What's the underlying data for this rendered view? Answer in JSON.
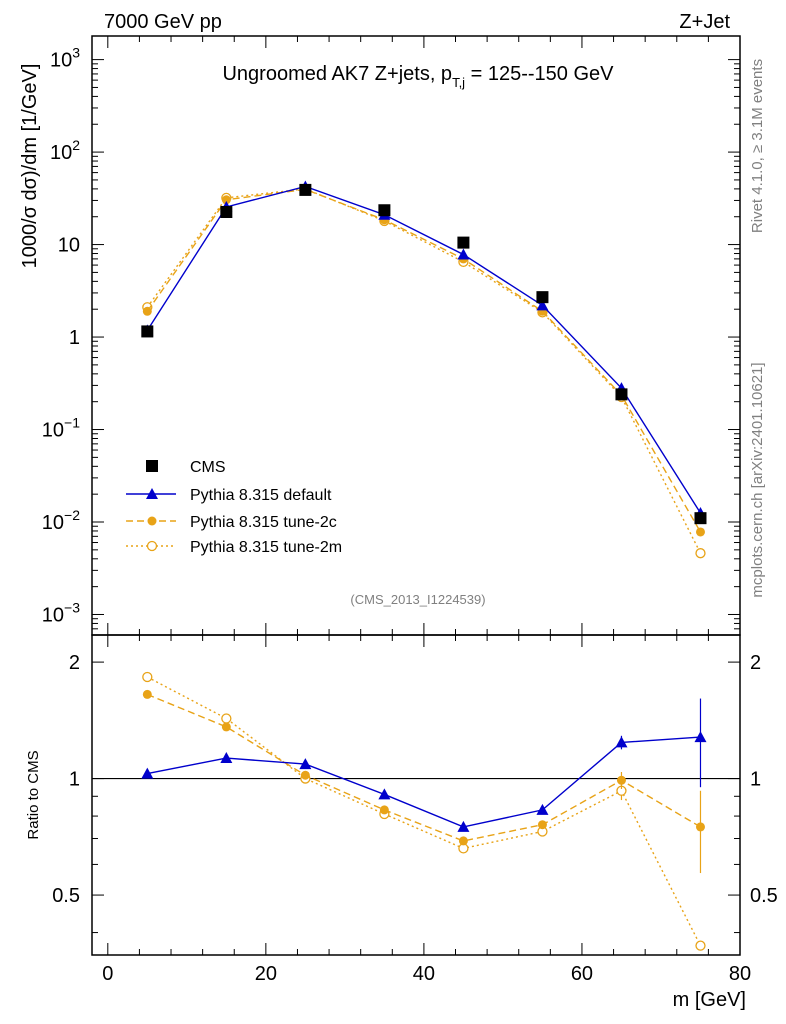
{
  "header": {
    "left": "7000 GeV pp",
    "right": "Z+Jet"
  },
  "side": {
    "rivet": "Rivet 4.1.0, ≥ 3.1M events",
    "mcplots": "mcplots.cern.ch [arXiv:2401.10621]"
  },
  "chart_data": {
    "type": "line",
    "title_main": "Ungroomed AK7 Z+jets, p",
    "title_sub": "T,j",
    "title_tail": " = 125--150 GeV",
    "analysis_tag": "(CMS_2013_I1224539)",
    "xlabel": "m [GeV]",
    "ylabel_top": "1000/σ  dσ)/dm [1/GeV]",
    "ylabel_bottom": "Ratio to CMS",
    "xlim": [
      -2,
      80
    ],
    "ylim_top": [
      0.0006,
      1800
    ],
    "ylim_bottom": [
      0.35,
      2.35
    ],
    "x_ticks": [
      {
        "value": 0,
        "label": "0"
      },
      {
        "value": 20,
        "label": "20"
      },
      {
        "value": 40,
        "label": "40"
      },
      {
        "value": 60,
        "label": "60"
      },
      {
        "value": 80,
        "label": "80"
      }
    ],
    "y_ticks_top": [
      {
        "value": 1000,
        "base": "10",
        "exp": "3"
      },
      {
        "value": 100,
        "base": "10",
        "exp": "2"
      },
      {
        "value": 10,
        "base": "10",
        "exp": ""
      },
      {
        "value": 1,
        "base": "1",
        "exp": ""
      },
      {
        "value": 0.1,
        "base": "10",
        "exp": "−1"
      },
      {
        "value": 0.01,
        "base": "10",
        "exp": "−2"
      },
      {
        "value": 0.001,
        "base": "10",
        "exp": "−3"
      }
    ],
    "y_ticks_bottom": [
      {
        "value": 2,
        "label": "2"
      },
      {
        "value": 1,
        "label": "1"
      },
      {
        "value": 0.5,
        "label": "0.5"
      }
    ],
    "x": [
      5,
      15,
      25,
      35,
      45,
      55,
      65,
      75
    ],
    "series": [
      {
        "name": "CMS",
        "color": "#000000",
        "marker": "square",
        "style": "none",
        "values": [
          1.15,
          22.5,
          39.0,
          23.5,
          10.5,
          2.7,
          0.24,
          0.011
        ],
        "ratio": [
          1,
          1,
          1,
          1,
          1,
          1,
          1,
          1
        ]
      },
      {
        "name": "Pythia 8.315 default",
        "color": "#0000cc",
        "marker": "triangle",
        "style": "solid",
        "values": [
          1.18,
          25.5,
          42.5,
          21.0,
          7.8,
          2.2,
          0.28,
          0.0125
        ],
        "ratio": [
          1.03,
          1.13,
          1.09,
          0.91,
          0.75,
          0.83,
          1.24,
          1.28
        ],
        "ratio_err": [
          0.02,
          0.0,
          0.0,
          0.0,
          0.0,
          0.0,
          0.05,
          0.33
        ]
      },
      {
        "name": "Pythia 8.315 tune-2c",
        "color": "#e8a317",
        "marker": "circle-filled",
        "style": "dashed",
        "values": [
          1.9,
          30.5,
          39.5,
          18.5,
          7.0,
          1.9,
          0.235,
          0.0078
        ],
        "ratio": [
          1.65,
          1.36,
          1.02,
          0.83,
          0.69,
          0.76,
          0.99,
          0.75
        ],
        "ratio_err": [
          0,
          0,
          0,
          0,
          0,
          0,
          0.05,
          0.18
        ]
      },
      {
        "name": "Pythia 8.315 tune-2m",
        "color": "#e8a317",
        "marker": "circle-open",
        "style": "dotted",
        "values": [
          2.1,
          32.0,
          40.0,
          18.0,
          6.5,
          1.85,
          0.225,
          0.0046
        ],
        "ratio": [
          1.83,
          1.43,
          1.0,
          0.81,
          0.66,
          0.73,
          0.93,
          0.37
        ],
        "ratio_err": [
          0,
          0,
          0,
          0,
          0,
          0,
          0.05,
          0.0
        ]
      }
    ]
  }
}
